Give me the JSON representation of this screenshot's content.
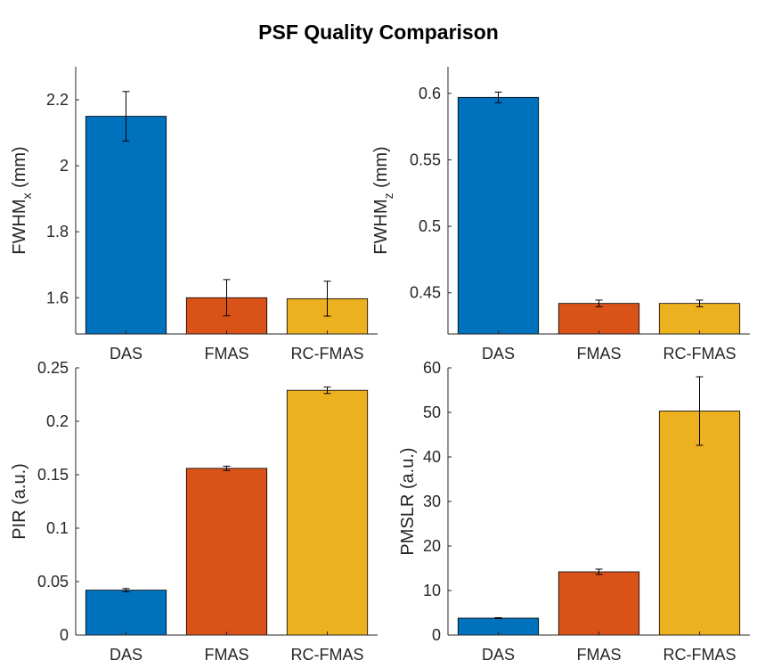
{
  "figure": {
    "title": "PSF Quality Comparison"
  },
  "colors": {
    "DAS": "#0072BD",
    "FMAS": "#D95319",
    "RC-FMAS": "#EDB120"
  },
  "chart_data": [
    {
      "type": "bar",
      "id": "fwhm-x",
      "ylabel": {
        "main": "FWHM",
        "sub": "x",
        "suffix": " (mm)"
      },
      "categories": [
        "DAS",
        "FMAS",
        "RC-FMAS"
      ],
      "values": [
        2.15,
        1.6,
        1.597
      ],
      "errors": [
        0.075,
        0.055,
        0.053
      ],
      "ylim": [
        1.49,
        2.3
      ],
      "yticks": [
        1.6,
        1.8,
        2,
        2.2
      ],
      "ytick_labels": [
        "1.6",
        "1.8",
        "2",
        "2.2"
      ]
    },
    {
      "type": "bar",
      "id": "fwhm-z",
      "ylabel": {
        "main": "FWHM",
        "sub": "z",
        "suffix": " (mm)"
      },
      "categories": [
        "DAS",
        "FMAS",
        "RC-FMAS"
      ],
      "values": [
        0.597,
        0.442,
        0.442
      ],
      "errors": [
        0.004,
        0.0025,
        0.0025
      ],
      "ylim": [
        0.419,
        0.62
      ],
      "yticks": [
        0.45,
        0.5,
        0.55,
        0.6
      ],
      "ytick_labels": [
        "0.45",
        "0.5",
        "0.55",
        "0.6"
      ]
    },
    {
      "type": "bar",
      "id": "pir",
      "ylabel": {
        "main": "PIR (a.u.)",
        "sub": "",
        "suffix": ""
      },
      "categories": [
        "DAS",
        "FMAS",
        "RC-FMAS"
      ],
      "values": [
        0.042,
        0.156,
        0.229
      ],
      "errors": [
        0.0015,
        0.002,
        0.003
      ],
      "ylim": [
        0,
        0.25
      ],
      "yticks": [
        0,
        0.05,
        0.1,
        0.15,
        0.2,
        0.25
      ],
      "ytick_labels": [
        "0",
        "0.05",
        "0.1",
        "0.15",
        "0.2",
        "0.25"
      ]
    },
    {
      "type": "bar",
      "id": "pmslr",
      "ylabel": {
        "main": "PMSLR (a.u.)",
        "sub": "",
        "suffix": ""
      },
      "categories": [
        "DAS",
        "FMAS",
        "RC-FMAS"
      ],
      "values": [
        3.8,
        14.2,
        50.3
      ],
      "errors": [
        0.1,
        0.6,
        7.7
      ],
      "ylim": [
        0,
        60
      ],
      "yticks": [
        0,
        10,
        20,
        30,
        40,
        50,
        60
      ],
      "ytick_labels": [
        "0",
        "10",
        "20",
        "30",
        "40",
        "50",
        "60"
      ]
    }
  ]
}
